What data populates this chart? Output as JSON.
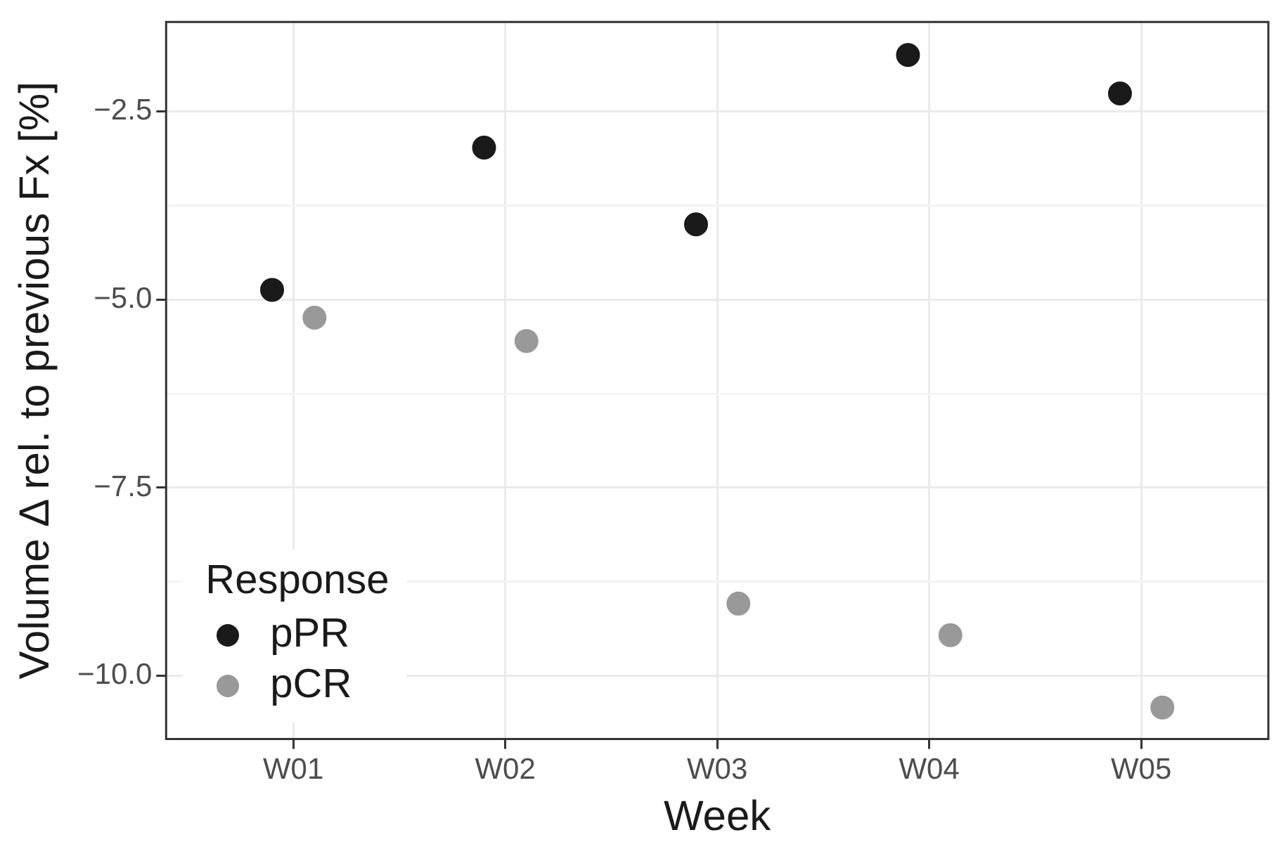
{
  "chart_data": {
    "type": "scatter",
    "xlabel": "Week",
    "ylabel": "Volume Δ rel. to previous Fx [%]",
    "categories": [
      "W01",
      "W02",
      "W03",
      "W04",
      "W05"
    ],
    "series": [
      {
        "name": "pPR",
        "color": "#1a1a1a",
        "values": [
          -4.87,
          -2.98,
          -4.0,
          -1.75,
          -2.26
        ]
      },
      {
        "name": "pCR",
        "color": "#999999",
        "values": [
          -5.24,
          -5.55,
          -9.04,
          -9.46,
          -10.42
        ]
      }
    ],
    "ylim": [
      -10.84,
      -1.31
    ],
    "yticks": [
      {
        "value": -10,
        "label": "−10.0"
      },
      {
        "value": -8.75,
        "label": null
      },
      {
        "value": -7.5,
        "label": "−7.5"
      },
      {
        "value": -6.25,
        "label": null
      },
      {
        "value": -5,
        "label": "−5.0"
      },
      {
        "value": -3.75,
        "label": null
      },
      {
        "value": -2.5,
        "label": "−2.5"
      }
    ],
    "grid": true,
    "legend": "bottom left",
    "legend_title": "Response",
    "marker": "circle"
  }
}
